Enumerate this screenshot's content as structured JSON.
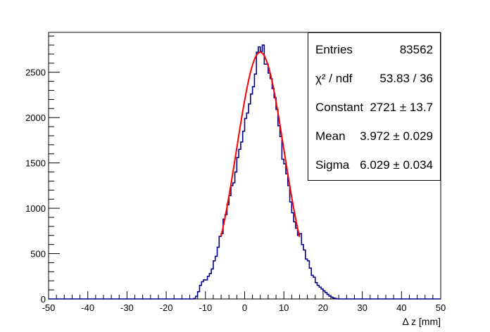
{
  "chart_data": {
    "type": "histogram",
    "title": "",
    "xlabel": "Δ z [mm]",
    "ylabel": "",
    "xlim": [
      -50,
      50
    ],
    "ylim": [
      0,
      2940
    ],
    "grid": false,
    "x_ticks": [
      "-50",
      "-40",
      "-30",
      "-20",
      "-10",
      "0",
      "10",
      "20",
      "30",
      "40",
      "50"
    ],
    "y_ticks": [
      "0",
      "500",
      "1000",
      "1500",
      "2000",
      "2500"
    ],
    "x_tick_values": [
      -50,
      -40,
      -30,
      -20,
      -10,
      0,
      10,
      20,
      30,
      40,
      50
    ],
    "y_tick_values": [
      0,
      500,
      1000,
      1500,
      2000,
      2500
    ],
    "bin_width": 0.5,
    "bins": [
      [
        -13,
        5
      ],
      [
        -12.5,
        30
      ],
      [
        -12,
        80
      ],
      [
        -11.5,
        150
      ],
      [
        -11,
        190
      ],
      [
        -10.5,
        210
      ],
      [
        -10,
        210
      ],
      [
        -9.5,
        250
      ],
      [
        -9,
        280
      ],
      [
        -8.5,
        330
      ],
      [
        -8,
        420
      ],
      [
        -7.5,
        470
      ],
      [
        -7,
        570
      ],
      [
        -6.5,
        690
      ],
      [
        -6,
        720
      ],
      [
        -5.5,
        880
      ],
      [
        -5,
        930
      ],
      [
        -4.5,
        1040
      ],
      [
        -4,
        1140
      ],
      [
        -3.5,
        1250
      ],
      [
        -3,
        1280
      ],
      [
        -2.5,
        1400
      ],
      [
        -2,
        1560
      ],
      [
        -1.5,
        1650
      ],
      [
        -1,
        1730
      ],
      [
        -0.5,
        1850
      ],
      [
        0,
        1990
      ],
      [
        0.5,
        2050
      ],
      [
        1,
        2150
      ],
      [
        1.5,
        2260
      ],
      [
        2,
        2340
      ],
      [
        2.5,
        2480
      ],
      [
        3,
        2720
      ],
      [
        3.5,
        2780
      ],
      [
        4,
        2730
      ],
      [
        4.5,
        2800
      ],
      [
        5,
        2590
      ],
      [
        5.5,
        2590
      ],
      [
        6,
        2490
      ],
      [
        6.5,
        2430
      ],
      [
        7,
        2320
      ],
      [
        7.5,
        2220
      ],
      [
        8,
        2090
      ],
      [
        8.5,
        1910
      ],
      [
        9,
        1790
      ],
      [
        9.5,
        1540
      ],
      [
        10,
        1490
      ],
      [
        10.5,
        1380
      ],
      [
        11,
        1250
      ],
      [
        11.5,
        1070
      ],
      [
        12,
        950
      ],
      [
        12.5,
        850
      ],
      [
        13,
        780
      ],
      [
        13.5,
        700
      ],
      [
        14,
        720
      ],
      [
        14.5,
        600
      ],
      [
        15,
        540
      ],
      [
        15.5,
        440
      ],
      [
        16,
        420
      ],
      [
        16.5,
        340
      ],
      [
        17,
        260
      ],
      [
        17.5,
        240
      ],
      [
        18,
        180
      ],
      [
        18.5,
        150
      ],
      [
        19,
        130
      ],
      [
        19.5,
        110
      ],
      [
        20,
        90
      ],
      [
        20.5,
        70
      ],
      [
        21,
        50
      ],
      [
        21.5,
        30
      ],
      [
        22,
        20
      ],
      [
        22.5,
        10
      ],
      [
        23,
        5
      ]
    ],
    "series": [
      {
        "name": "",
        "kind": "histogram",
        "color": "#00008b"
      },
      {
        "name": "",
        "kind": "gaussian-fit",
        "color": "#ff0000",
        "constant": 2721,
        "mean": 3.972,
        "sigma": 6.029,
        "x_range": [
          -6,
          14
        ]
      }
    ]
  },
  "stats_box": [
    {
      "label": "Entries",
      "value": "83562"
    },
    {
      "label": "χ² / ndf",
      "value": "53.83 / 36"
    },
    {
      "label": "Constant",
      "value": "2721 ± 13.7"
    },
    {
      "label": "Mean",
      "value": "3.972 ± 0.029"
    },
    {
      "label": "Sigma",
      "value": "6.029 ± 0.034"
    }
  ]
}
